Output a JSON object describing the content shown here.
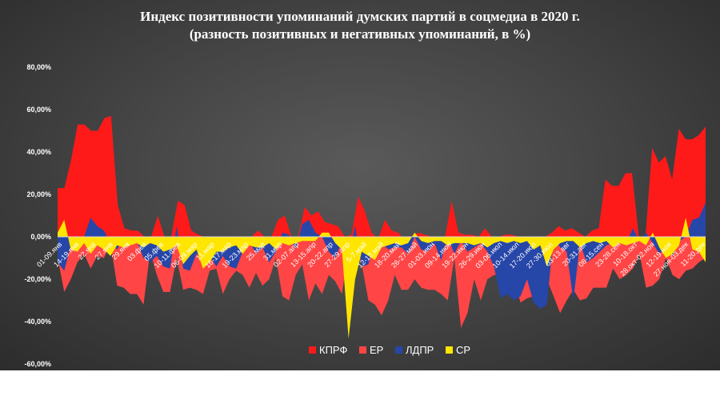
{
  "chart_data": {
    "type": "area",
    "title_line1": "Индекс позитивности упоминаний думских партий в соцмедиа в 2020 г.",
    "title_line2": "(разность позитивных и негативных упоминаний, в %)",
    "ylim": [
      -60,
      80
    ],
    "yticks": [
      "80,00%",
      "60,00%",
      "40,00%",
      "20,00%",
      "0,00%",
      "-20,00%",
      "-40,00%",
      "-60,00%"
    ],
    "ytick_values": [
      80,
      60,
      40,
      20,
      0,
      -20,
      -40,
      -60
    ],
    "grid": false,
    "legend_position": "bottom",
    "x_labels": [
      "01-09.янв",
      "14-19.янв",
      "22.янв",
      "27.янв",
      "29.янв",
      "03.фев",
      "05.фев",
      "10-11.фев",
      "06-09.мар",
      "11.мар",
      "16-17.мар",
      "19-23.мар",
      "25.мар",
      "31.мар",
      "02-07.апр",
      "13-15.апр",
      "20-22.апр",
      "27-29.апр",
      "5-7.май",
      "12-13.май",
      "18-20.май",
      "26-27.май",
      "01-03.июн",
      "09-14.июн",
      "19-22.июн",
      "26-29.июн",
      "03-06.июл",
      "10-14.июл",
      "17-20.июл",
      "27-30.июл",
      "03-13.авг",
      "20-31.авг",
      "08-15.сен",
      "23-28.сен",
      "10-18.окт",
      "28.окт-02.ноя",
      "12-19.ноя",
      "27.ноя-03.дек",
      "11-20.дек"
    ],
    "series": [
      {
        "name": "КПРФ",
        "color": "#ff1a1a",
        "values": [
          23,
          23,
          36,
          53,
          53,
          50,
          50,
          56,
          57,
          15,
          4,
          3,
          3,
          0,
          0,
          10,
          0,
          0,
          17,
          15,
          3,
          1,
          0,
          -1,
          -1,
          0,
          0,
          0,
          0,
          0,
          3,
          0,
          0,
          8,
          10,
          0,
          0,
          14,
          10,
          12,
          7,
          6,
          5,
          0,
          1,
          19,
          12,
          2,
          -1,
          8,
          3,
          2,
          -2,
          0,
          2,
          1,
          0,
          0,
          0,
          17,
          2,
          1,
          1,
          0,
          4,
          0,
          0,
          1,
          1,
          0,
          0,
          0,
          0,
          0,
          2,
          5,
          3,
          4,
          2,
          0,
          3,
          4,
          27,
          24,
          24,
          30,
          30,
          0,
          0,
          42,
          35,
          38,
          27,
          51,
          46,
          46,
          48,
          52
        ]
      },
      {
        "name": "ЕР",
        "color": "#ff4545",
        "values": [
          -10,
          -26,
          -20,
          -12,
          -8,
          -15,
          -9,
          -10,
          -3,
          -23,
          -24,
          -27,
          -27,
          -32,
          -7,
          -18,
          -26,
          -26,
          -10,
          -25,
          -24,
          -25,
          -27,
          -16,
          -15,
          -27,
          -20,
          -16,
          -18,
          -24,
          -17,
          -23,
          -20,
          -10,
          -28,
          -30,
          -18,
          -13,
          -30,
          -22,
          -27,
          -18,
          -21,
          -27,
          -6,
          -5,
          -13,
          -30,
          -32,
          -37,
          -30,
          -18,
          -25,
          -25,
          -20,
          -24,
          -25,
          -25,
          -27,
          -30,
          -10,
          -43,
          -36,
          -20,
          -30,
          -20,
          -18,
          -18,
          -15,
          -20,
          -31,
          -29,
          -28,
          -32,
          -20,
          -28,
          -36,
          -30,
          -25,
          -30,
          -29,
          -24,
          -24,
          -24,
          -15,
          -20,
          -18,
          -15,
          -8,
          -24,
          -23,
          -20,
          -10,
          -18,
          -20,
          -16,
          -15,
          -12,
          -10
        ]
      },
      {
        "name": "ЛДПР",
        "color": "#2646a8",
        "values": [
          -12,
          -16,
          -4,
          0,
          0,
          9,
          5,
          3,
          -3,
          -6,
          0,
          0,
          -2,
          -10,
          -12,
          -9,
          -14,
          -15,
          5,
          -15,
          -16,
          -8,
          -11,
          -9,
          -14,
          -9,
          -14,
          -15,
          -7,
          -2,
          -8,
          -5,
          -12,
          -7,
          2,
          1,
          -6,
          6,
          8,
          2,
          0,
          -7,
          -10,
          -2,
          -9,
          5,
          -14,
          -13,
          0,
          -3,
          -6,
          -5,
          -5,
          -8,
          0,
          -6,
          -7,
          -3,
          -11,
          0,
          -8,
          -2,
          -7,
          -5,
          -3,
          -7,
          -14,
          -29,
          -27,
          -30,
          -28,
          -20,
          -31,
          -34,
          -32,
          0,
          -5,
          -7,
          -30,
          -3,
          -12,
          -10,
          -7,
          -4,
          -3,
          -2,
          -3,
          4,
          -2,
          2,
          -3,
          -8,
          -5,
          -9,
          -2,
          0,
          8,
          9,
          16
        ]
      },
      {
        "name": "СР",
        "color": "#ffe600",
        "values": [
          2,
          8,
          -6,
          -7,
          -3,
          -8,
          -4,
          -6,
          -9,
          -4,
          -5,
          -4,
          -3,
          -5,
          -3,
          -4,
          -7,
          -6,
          -4,
          -13,
          -9,
          -6,
          -15,
          -12,
          -7,
          -7,
          -5,
          -4,
          -8,
          -4,
          -5,
          -5,
          -3,
          -6,
          -3,
          -4,
          -3,
          -2,
          -2,
          -2,
          2,
          2,
          -3,
          -6,
          -48,
          -20,
          -7,
          -9,
          -11,
          -5,
          -4,
          -3,
          -4,
          -3,
          2,
          -2,
          -3,
          -2,
          -2,
          -4,
          -3,
          -3,
          -3,
          -4,
          -3,
          -5,
          -3,
          -2,
          -3,
          -2,
          -3,
          -2,
          -6,
          -4,
          -14,
          -6,
          -3,
          -2,
          -2,
          -5,
          -3,
          -2,
          -3,
          -2,
          -5,
          -3,
          -4,
          -3,
          -2,
          -4,
          2,
          -5,
          -10,
          -8,
          -4,
          9,
          -6,
          -7,
          -12
        ]
      }
    ]
  }
}
